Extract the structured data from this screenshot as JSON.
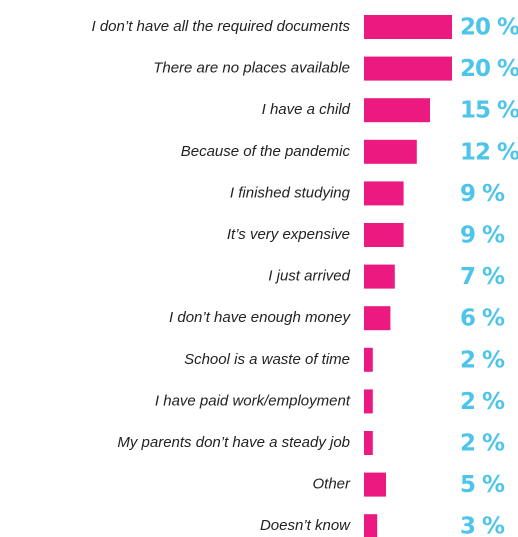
{
  "chart_data": {
    "type": "bar",
    "orientation": "horizontal",
    "color": "#ec1a80",
    "categories": [
      "I don’t have all the required documents",
      "There are no places available",
      "I have a child",
      "Because of the pandemic",
      "I finished studying",
      "It’s very expensive",
      "I just arrived",
      "I don’t have enough money",
      "School is a waste of time",
      "I have paid work/employment",
      "My parents don’t have a steady job",
      "Other",
      "Doesn’t know"
    ],
    "values": [
      20,
      20,
      15,
      12,
      9,
      9,
      7,
      6,
      2,
      2,
      2,
      5,
      3
    ],
    "value_labels": [
      "20 %",
      "20 %",
      "15 %",
      "12 %",
      "9 %",
      "9 %",
      "7 %",
      "6 %",
      "2 %",
      "2 %",
      "2 %",
      "5 %",
      "3 %"
    ]
  }
}
